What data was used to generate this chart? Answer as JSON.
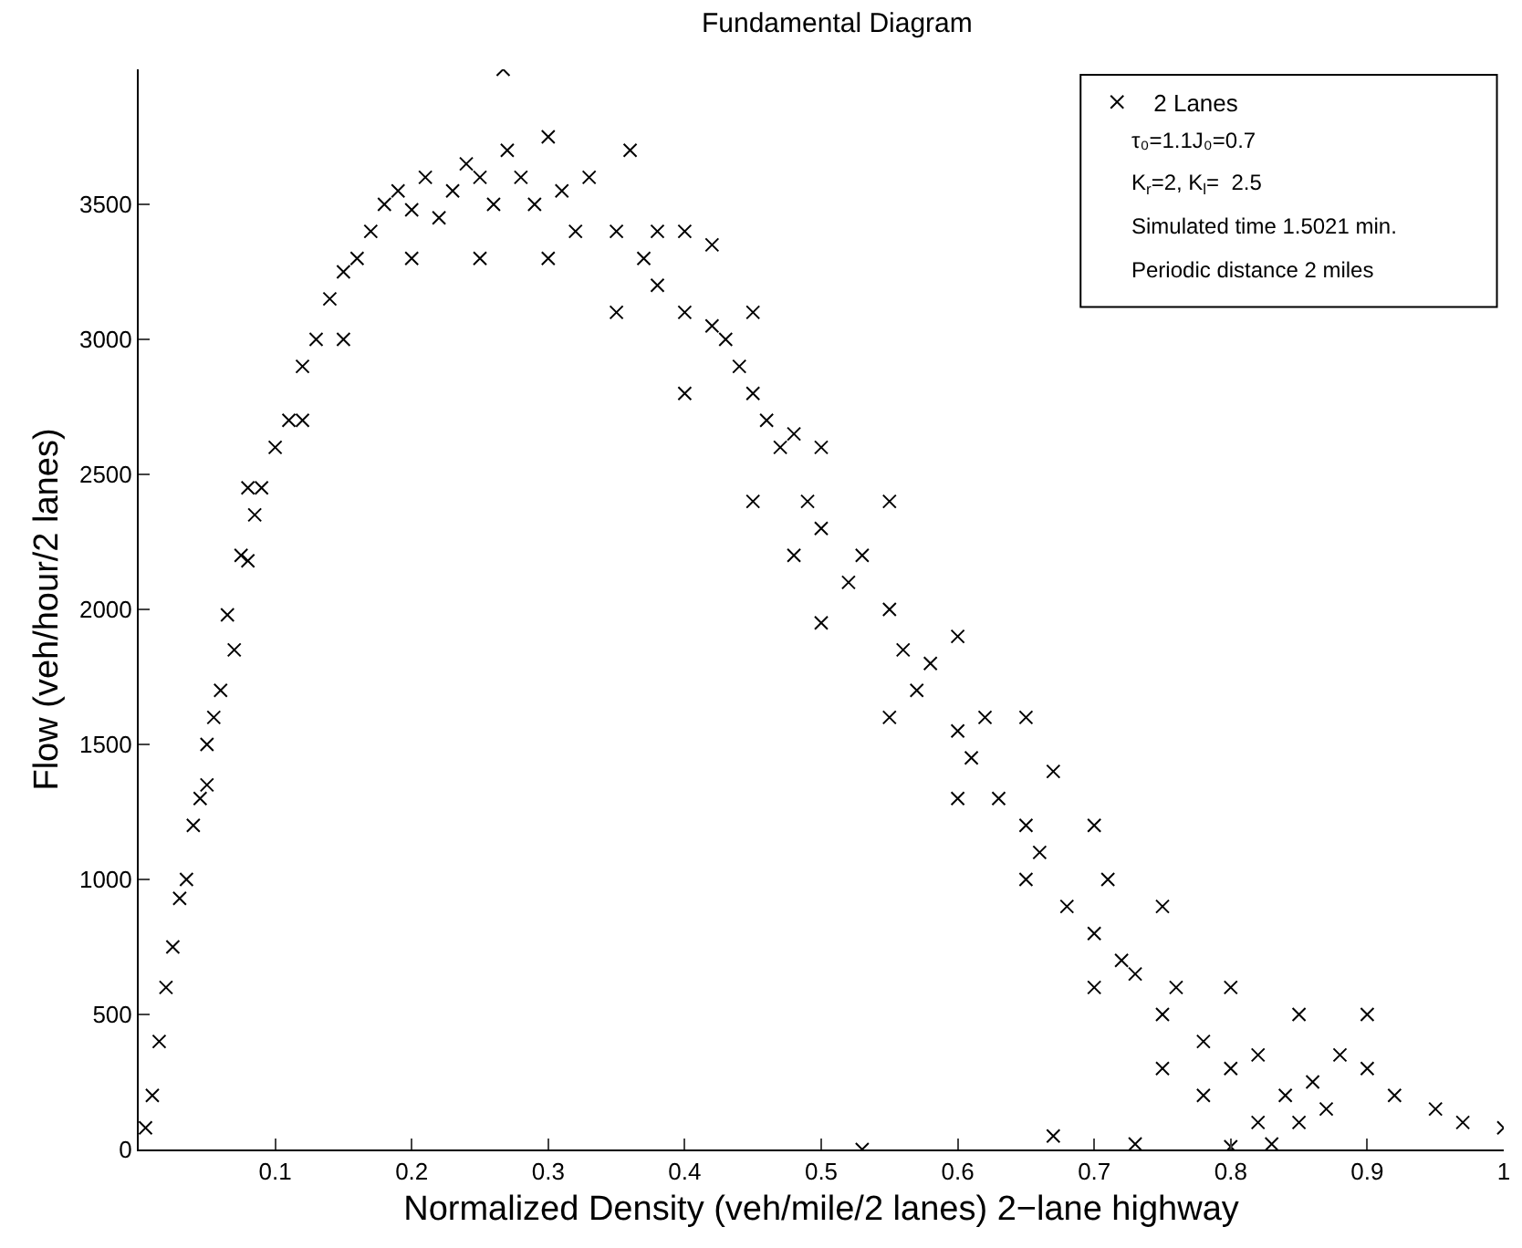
{
  "chart_data": {
    "type": "scatter",
    "title": "Fundamental Diagram",
    "xlabel": "Normalized Density (veh/mile/2 lanes) 2−lane highway",
    "ylabel": "Flow (veh/hour/2 lanes)",
    "annotations": [
      "τ₀=1.1J₀=0.7",
      "K$_{r}$=2, K$_{l}$=  2.5",
      "Simulated time 1.5021 min.",
      "Periodic distance 2 miles"
    ],
    "xlim": [
      0,
      1
    ],
    "ylim": [
      0,
      4000
    ],
    "xticks": [
      0.1,
      0.2,
      0.3,
      0.4,
      0.5,
      0.6,
      0.7,
      0.8,
      0.9,
      1
    ],
    "yticks": [
      0,
      500,
      1000,
      1500,
      2000,
      2500,
      3000,
      3500
    ],
    "grid": false,
    "legend": "top right",
    "marker": "cross",
    "series": [
      {
        "name": "2 Lanes",
        "color": "#000000",
        "x": [
          0.005,
          0.01,
          0.015,
          0.02,
          0.025,
          0.03,
          0.035,
          0.04,
          0.045,
          0.05,
          0.055,
          0.06,
          0.065,
          0.07,
          0.075,
          0.08,
          0.085,
          0.09,
          0.1,
          0.11,
          0.12,
          0.13,
          0.14,
          0.15,
          0.16,
          0.17,
          0.18,
          0.19,
          0.2,
          0.21,
          0.22,
          0.23,
          0.24,
          0.25,
          0.26,
          0.27,
          0.267,
          0.28,
          0.29,
          0.3,
          0.31,
          0.32,
          0.33,
          0.35,
          0.36,
          0.37,
          0.38,
          0.4,
          0.42,
          0.43,
          0.44,
          0.45,
          0.46,
          0.47,
          0.48,
          0.49,
          0.5,
          0.52,
          0.53,
          0.55,
          0.56,
          0.57,
          0.58,
          0.6,
          0.61,
          0.62,
          0.63,
          0.65,
          0.66,
          0.67,
          0.68,
          0.7,
          0.71,
          0.72,
          0.73,
          0.75,
          0.76,
          0.78,
          0.8,
          0.82,
          0.84,
          0.85,
          0.86,
          0.87,
          0.88,
          0.9,
          0.92,
          0.95,
          0.97,
          1.0,
          0.53,
          0.67,
          0.73,
          0.8,
          0.83,
          0.25,
          0.3,
          0.35,
          0.4,
          0.45,
          0.5,
          0.55,
          0.6,
          0.65,
          0.7,
          0.75,
          0.8,
          0.85,
          0.9,
          0.12,
          0.15,
          0.2,
          0.5,
          0.55,
          0.6,
          0.65,
          0.45,
          0.4,
          0.38,
          0.42,
          0.48,
          0.7,
          0.75,
          0.78,
          0.82,
          0.05,
          0.08
        ],
        "values": [
          80,
          200,
          400,
          600,
          750,
          930,
          1000,
          1200,
          1300,
          1500,
          1600,
          1700,
          1980,
          1850,
          2200,
          2180,
          2350,
          2450,
          2600,
          2700,
          2900,
          3000,
          3150,
          3250,
          3300,
          3400,
          3500,
          3550,
          3480,
          3600,
          3450,
          3550,
          3650,
          3600,
          3500,
          3700,
          4000,
          3600,
          3500,
          3750,
          3550,
          3400,
          3600,
          3400,
          3700,
          3300,
          3200,
          3100,
          3050,
          3000,
          2900,
          2800,
          2700,
          2600,
          2650,
          2400,
          2300,
          2100,
          2200,
          2000,
          1850,
          1700,
          1800,
          1550,
          1450,
          1600,
          1300,
          1200,
          1100,
          1400,
          900,
          800,
          1000,
          700,
          650,
          500,
          600,
          400,
          300,
          350,
          200,
          100,
          250,
          150,
          350,
          300,
          200,
          150,
          100,
          80,
          0,
          50,
          20,
          10,
          20,
          3300,
          3300,
          3100,
          3400,
          3100,
          2600,
          2400,
          1900,
          1600,
          1200,
          900,
          600,
          500,
          500,
          2700,
          3000,
          3300,
          1950,
          1600,
          1300,
          1000,
          2400,
          2800,
          3400,
          3350,
          2200,
          600,
          300,
          200,
          100,
          1350,
          2450
        ]
      }
    ]
  }
}
